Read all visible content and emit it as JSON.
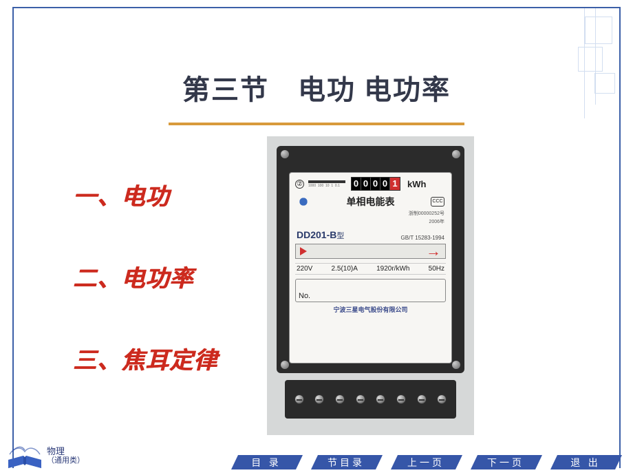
{
  "colors": {
    "border": "#3b5fa8",
    "title": "#33384a",
    "underline": "#d89a3c",
    "toc_red": "#cc2a1e",
    "nav_fill": "#3656a8",
    "meter_accent_red": "#d03030",
    "meter_text_blue": "#2a3a6a"
  },
  "title": "第三节　电功 电功率",
  "toc": [
    "一、电功",
    "二、电功率",
    "三、焦耳定律"
  ],
  "meter": {
    "circle_num": "②",
    "counter_digits": [
      "0",
      "0",
      "0",
      "0",
      "1"
    ],
    "unit": "kWh",
    "name_cn": "单相电能表",
    "permit": "浙制00000252号",
    "year": "2006年",
    "model_prefix": "DD201-B",
    "model_suffix": "型",
    "standard": "GB/T 15283-1994",
    "specs": {
      "voltage": "220V",
      "accuracy": "2.5(10)A",
      "constant": "1920r/kWh",
      "freq": "50Hz"
    },
    "no_label": "No.",
    "manufacturer": "宁波三星电气股份有限公司"
  },
  "logo": {
    "line1": "物理",
    "line2": "（通用类）"
  },
  "nav": [
    "目 录",
    "节目录",
    "上一页",
    "下一页",
    "退 出"
  ]
}
